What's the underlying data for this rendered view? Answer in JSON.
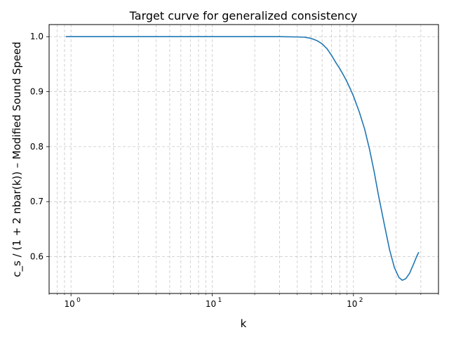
{
  "chart_data": {
    "type": "line",
    "title": "Target curve for generalized consistency",
    "xlabel": "k",
    "ylabel": "c_s / (1 + 2 nbar(k)) – Modified Sound Speed",
    "xscale": "log",
    "xlim": [
      0.7,
      400
    ],
    "ylim": [
      0.533,
      1.022
    ],
    "grid": true,
    "x_ticks": [
      {
        "base": "10",
        "exp": "0",
        "value": 1
      },
      {
        "base": "10",
        "exp": "1",
        "value": 10
      },
      {
        "base": "10",
        "exp": "2",
        "value": 100
      }
    ],
    "y_ticks": [
      {
        "label": "0.6",
        "value": 0.6
      },
      {
        "label": "0.7",
        "value": 0.7
      },
      {
        "label": "0.8",
        "value": 0.8
      },
      {
        "label": "0.9",
        "value": 0.9
      },
      {
        "label": "1.0",
        "value": 1.0
      }
    ],
    "series": [
      {
        "color": "#1f77b4",
        "x": [
          0.92,
          2,
          5,
          10,
          20,
          30,
          40,
          45,
          50,
          55,
          60,
          65,
          70,
          75,
          80,
          85,
          90,
          95,
          100,
          110,
          120,
          130,
          140,
          150,
          165,
          180,
          195,
          210,
          222,
          235,
          250,
          265,
          280,
          290
        ],
        "y": [
          1.0,
          1.0,
          1.0,
          1.0,
          1.0,
          1.0,
          0.9995,
          0.999,
          0.997,
          0.993,
          0.987,
          0.978,
          0.966,
          0.953,
          0.942,
          0.93,
          0.918,
          0.905,
          0.892,
          0.863,
          0.832,
          0.795,
          0.755,
          0.713,
          0.66,
          0.613,
          0.58,
          0.562,
          0.557,
          0.56,
          0.57,
          0.585,
          0.6,
          0.608
        ]
      }
    ]
  }
}
